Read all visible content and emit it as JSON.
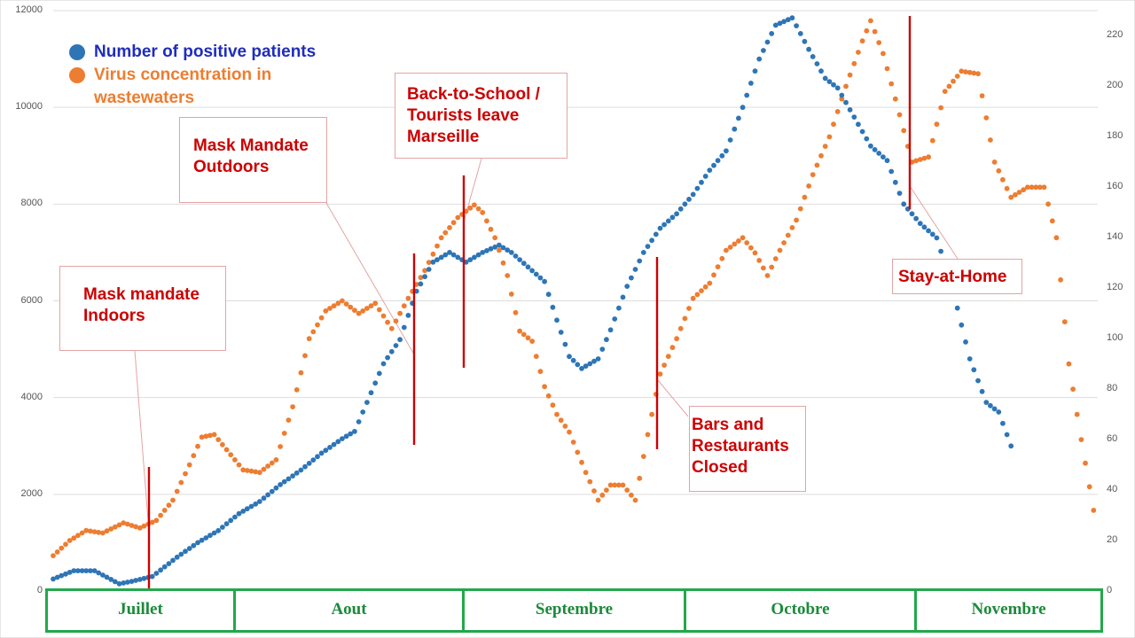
{
  "colors": {
    "patients": "#2e75b6",
    "wastewater": "#ed7d31",
    "event_line": "#cc0000",
    "callout_text": "#cc0000",
    "callout_border": "#e3a4a4",
    "month_border": "#22a84a",
    "month_text": "#1b8a3a",
    "legend_patients_text": "#1f2dbd",
    "legend_wastewater_text": "#ed7d31",
    "grid": "#dddddd"
  },
  "chart_data": {
    "type": "scatter",
    "title": "",
    "grid": true,
    "legend_position": "top-left",
    "axes": {
      "left": {
        "range": [
          0,
          12000
        ],
        "ticks": [
          "0",
          "2000",
          "4000",
          "6000",
          "8000",
          "10000",
          "12000"
        ]
      },
      "right": {
        "range": [
          0,
          230
        ],
        "ticks": [
          "0",
          "20",
          "40",
          "60",
          "80",
          "100",
          "120",
          "140",
          "160",
          "180",
          "200",
          "220"
        ]
      }
    },
    "months": [
      "Juillet",
      "Aout",
      "Septembre",
      "Octobre",
      "Novembre"
    ],
    "series": [
      {
        "name": "Number of positive patients",
        "axis": "left",
        "points": [
          [
            0,
            250
          ],
          [
            5,
            420
          ],
          [
            10,
            420
          ],
          [
            16,
            150
          ],
          [
            19,
            200
          ],
          [
            24,
            300
          ],
          [
            30,
            700
          ],
          [
            35,
            1000
          ],
          [
            40,
            1250
          ],
          [
            45,
            1600
          ],
          [
            50,
            1850
          ],
          [
            55,
            2200
          ],
          [
            60,
            2500
          ],
          [
            65,
            2850
          ],
          [
            70,
            3150
          ],
          [
            73,
            3300
          ],
          [
            77,
            4100
          ],
          [
            80,
            4700
          ],
          [
            84,
            5200
          ],
          [
            88,
            6200
          ],
          [
            92,
            6800
          ],
          [
            96,
            7000
          ],
          [
            100,
            6800
          ],
          [
            104,
            7000
          ],
          [
            108,
            7150
          ],
          [
            111,
            7000
          ],
          [
            115,
            6700
          ],
          [
            119,
            6400
          ],
          [
            122,
            5600
          ],
          [
            125,
            4850
          ],
          [
            128,
            4600
          ],
          [
            132,
            4800
          ],
          [
            135,
            5400
          ],
          [
            139,
            6300
          ],
          [
            143,
            7000
          ],
          [
            147,
            7500
          ],
          [
            151,
            7800
          ],
          [
            155,
            8200
          ],
          [
            159,
            8700
          ],
          [
            163,
            9100
          ],
          [
            167,
            10000
          ],
          [
            171,
            11000
          ],
          [
            175,
            11700
          ],
          [
            179,
            11850
          ],
          [
            183,
            11200
          ],
          [
            187,
            10600
          ],
          [
            190,
            10400
          ],
          [
            194,
            9800
          ],
          [
            198,
            9200
          ],
          [
            202,
            8900
          ],
          [
            206,
            8000
          ],
          [
            210,
            7600
          ],
          [
            214,
            7300
          ],
          [
            218,
            6200
          ],
          [
            222,
            4800
          ],
          [
            226,
            3900
          ],
          [
            229,
            3700
          ],
          [
            232,
            3000
          ]
        ]
      },
      {
        "name": "Virus concentration in wastewaters",
        "axis": "right",
        "points": [
          [
            0,
            14
          ],
          [
            4,
            20
          ],
          [
            8,
            24
          ],
          [
            12,
            23
          ],
          [
            17,
            27
          ],
          [
            21,
            25
          ],
          [
            25,
            28
          ],
          [
            29,
            36
          ],
          [
            33,
            50
          ],
          [
            36,
            61
          ],
          [
            39,
            62
          ],
          [
            42,
            56
          ],
          [
            46,
            48
          ],
          [
            50,
            47
          ],
          [
            54,
            52
          ],
          [
            58,
            73
          ],
          [
            62,
            100
          ],
          [
            66,
            111
          ],
          [
            70,
            115
          ],
          [
            74,
            110
          ],
          [
            78,
            114
          ],
          [
            82,
            104
          ],
          [
            86,
            116
          ],
          [
            90,
            127
          ],
          [
            94,
            140
          ],
          [
            98,
            148
          ],
          [
            102,
            153
          ],
          [
            104,
            150
          ],
          [
            107,
            140
          ],
          [
            110,
            125
          ],
          [
            113,
            103
          ],
          [
            116,
            99
          ],
          [
            119,
            81
          ],
          [
            122,
            70
          ],
          [
            125,
            63
          ],
          [
            129,
            47
          ],
          [
            132,
            36
          ],
          [
            135,
            42
          ],
          [
            138,
            42
          ],
          [
            141,
            36
          ],
          [
            144,
            62
          ],
          [
            147,
            86
          ],
          [
            151,
            100
          ],
          [
            155,
            116
          ],
          [
            159,
            122
          ],
          [
            163,
            135
          ],
          [
            167,
            140
          ],
          [
            170,
            134
          ],
          [
            173,
            125
          ],
          [
            176,
            135
          ],
          [
            180,
            147
          ],
          [
            184,
            165
          ],
          [
            188,
            180
          ],
          [
            192,
            200
          ],
          [
            196,
            218
          ],
          [
            198,
            226
          ],
          [
            201,
            213
          ],
          [
            204,
            195
          ],
          [
            208,
            170
          ],
          [
            212,
            172
          ],
          [
            216,
            198
          ],
          [
            220,
            206
          ],
          [
            224,
            205
          ],
          [
            228,
            170
          ],
          [
            232,
            156
          ],
          [
            236,
            160
          ],
          [
            240,
            160
          ],
          [
            243,
            140
          ],
          [
            246,
            90
          ],
          [
            249,
            60
          ],
          [
            252,
            32
          ]
        ]
      }
    ]
  },
  "legend": {
    "patients": "Number of positive patients",
    "wastewater_line1": "Virus concentration in",
    "wastewater_line2": "wastewaters"
  },
  "callouts": {
    "mask_indoors": {
      "line1": "Mask mandate",
      "line2": "Indoors"
    },
    "mask_outdoors": {
      "line1": "Mask Mandate",
      "line2": "Outdoors"
    },
    "back_to_school": {
      "line1": "Back-to-School /",
      "line2": "Tourists leave",
      "line3": "Marseille"
    },
    "bars_closed": {
      "line1": "Bars and",
      "line2": "Restaurants",
      "line3": "Closed"
    },
    "stay_home": {
      "line1": "Stay-at-Home"
    }
  }
}
